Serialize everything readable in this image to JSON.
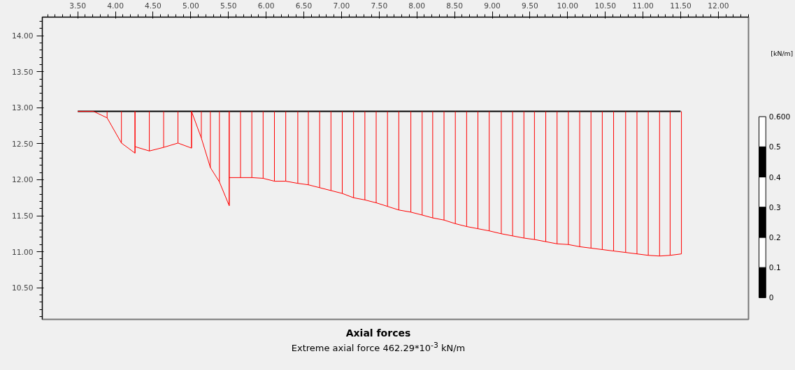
{
  "chart_data": {
    "type": "line",
    "title": "Axial forces",
    "annotations": [
      "Extreme axial force 462.29*10$^{-3}$ kN/m"
    ],
    "series": [
      {
        "color": "#000000",
        "x": [
          3.5,
          11.5
        ],
        "values": [
          12.95,
          12.95
        ]
      },
      {
        "color": "#ff0000",
        "errors": [
          [
            12.95,
            12.95
          ],
          [
            12.95,
            12.95
          ],
          [
            12.86,
            12.95
          ],
          [
            12.51,
            12.95
          ],
          [
            12.37,
            12.95
          ],
          [
            12.46,
            12.95
          ],
          [
            12.4,
            12.95
          ],
          [
            12.45,
            12.95
          ],
          [
            12.51,
            12.95
          ],
          [
            12.44,
            12.95
          ],
          [
            12.95,
            12.95
          ],
          [
            12.58,
            12.95
          ],
          [
            12.17,
            12.95
          ],
          [
            11.97,
            12.95
          ],
          [
            11.64,
            12.95
          ],
          [
            12.03,
            12.95
          ],
          [
            12.03,
            12.95
          ],
          [
            12.03,
            12.95
          ],
          [
            12.02,
            12.95
          ],
          [
            11.98,
            12.95
          ],
          [
            11.98,
            12.95
          ],
          [
            11.95,
            12.95
          ],
          [
            11.93,
            12.95
          ],
          [
            11.89,
            12.95
          ],
          [
            11.85,
            12.95
          ],
          [
            11.81,
            12.95
          ],
          [
            11.75,
            12.95
          ],
          [
            11.72,
            12.95
          ],
          [
            11.68,
            12.95
          ],
          [
            11.63,
            12.95
          ],
          [
            11.58,
            12.95
          ],
          [
            11.55,
            12.95
          ],
          [
            11.51,
            12.95
          ],
          [
            11.47,
            12.95
          ],
          [
            11.44,
            12.95
          ],
          [
            11.39,
            12.95
          ],
          [
            11.35,
            12.95
          ],
          [
            11.32,
            12.95
          ],
          [
            11.29,
            12.95
          ],
          [
            11.25,
            12.95
          ],
          [
            11.22,
            12.95
          ],
          [
            11.19,
            12.95
          ],
          [
            11.17,
            12.95
          ],
          [
            11.14,
            12.95
          ],
          [
            11.11,
            12.95
          ],
          [
            11.1,
            12.95
          ],
          [
            11.07,
            12.95
          ],
          [
            11.05,
            12.95
          ],
          [
            11.03,
            12.95
          ],
          [
            11.01,
            12.95
          ],
          [
            10.99,
            12.95
          ],
          [
            10.97,
            12.95
          ],
          [
            10.95,
            12.95
          ],
          [
            10.94,
            12.95
          ],
          [
            10.95,
            12.95
          ],
          [
            10.97,
            12.95
          ]
        ],
        "x": [
          3.5,
          3.71,
          3.89,
          4.08,
          4.26,
          4.26,
          4.45,
          4.64,
          4.83,
          5.01,
          5.01,
          5.14,
          5.26,
          5.38,
          5.51,
          5.51,
          5.66,
          5.81,
          5.96,
          6.11,
          6.26,
          6.42,
          6.56,
          6.71,
          6.86,
          7.01,
          7.16,
          7.31,
          7.46,
          7.61,
          7.76,
          7.92,
          8.07,
          8.21,
          8.36,
          8.51,
          8.66,
          8.81,
          8.96,
          9.12,
          9.27,
          9.42,
          9.56,
          9.71,
          9.86,
          10.01,
          10.16,
          10.31,
          10.46,
          10.61,
          10.77,
          10.92,
          11.07,
          11.22,
          11.36,
          11.51
        ],
        "values": [
          12.95,
          12.95,
          12.86,
          12.51,
          12.37,
          12.46,
          12.4,
          12.45,
          12.51,
          12.44,
          12.95,
          12.58,
          12.17,
          11.97,
          11.64,
          12.03,
          12.03,
          12.03,
          12.02,
          11.98,
          11.98,
          11.95,
          11.93,
          11.89,
          11.85,
          11.81,
          11.75,
          11.72,
          11.68,
          11.63,
          11.58,
          11.55,
          11.51,
          11.47,
          11.44,
          11.39,
          11.35,
          11.32,
          11.29,
          11.25,
          11.22,
          11.19,
          11.17,
          11.14,
          11.11,
          11.1,
          11.07,
          11.05,
          11.03,
          11.01,
          10.99,
          10.97,
          10.95,
          10.94,
          10.95,
          10.97
        ]
      }
    ],
    "marker": "none",
    "xlim": [
      3.03,
      12.4
    ],
    "ylim": [
      10.06,
      14.26
    ],
    "xticks": [
      {
        "value": 3.5,
        "label": "3.50"
      },
      {
        "value": 4.0,
        "label": "4.00"
      },
      {
        "value": 4.5,
        "label": "4.50"
      },
      {
        "value": 5.0,
        "label": "5.00"
      },
      {
        "value": 5.5,
        "label": "5.50"
      },
      {
        "value": 6.0,
        "label": "6.00"
      },
      {
        "value": 6.5,
        "label": "6.50"
      },
      {
        "value": 7.0,
        "label": "7.00"
      },
      {
        "value": 7.5,
        "label": "7.50"
      },
      {
        "value": 8.0,
        "label": "8.00"
      },
      {
        "value": 8.5,
        "label": "8.50"
      },
      {
        "value": 9.0,
        "label": "9.00"
      },
      {
        "value": 9.5,
        "label": "9.50"
      },
      {
        "value": 10.0,
        "label": "10.00"
      },
      {
        "value": 10.5,
        "label": "10.50"
      },
      {
        "value": 11.0,
        "label": "11.00"
      },
      {
        "value": 11.5,
        "label": "11.50"
      },
      {
        "value": 12.0,
        "label": "12.00"
      }
    ],
    "yticks": [
      {
        "value": 10.5,
        "label": "10.50"
      },
      {
        "value": 11.0,
        "label": "11.00"
      },
      {
        "value": 11.5,
        "label": "11.50"
      },
      {
        "value": 12.0,
        "label": "12.00"
      },
      {
        "value": 12.5,
        "label": "12.50"
      },
      {
        "value": 13.0,
        "label": "13.00"
      },
      {
        "value": 13.5,
        "label": "13.50"
      },
      {
        "value": 14.0,
        "label": "14.00"
      }
    ],
    "grid": false,
    "clabel": "[kN/m]",
    "clim": [
      0,
      0.6
    ],
    "cticks": [
      0,
      0.1,
      0.2,
      0.3,
      0.4,
      0.5,
      {
        "value": 0.6,
        "label": "0.600"
      }
    ]
  }
}
